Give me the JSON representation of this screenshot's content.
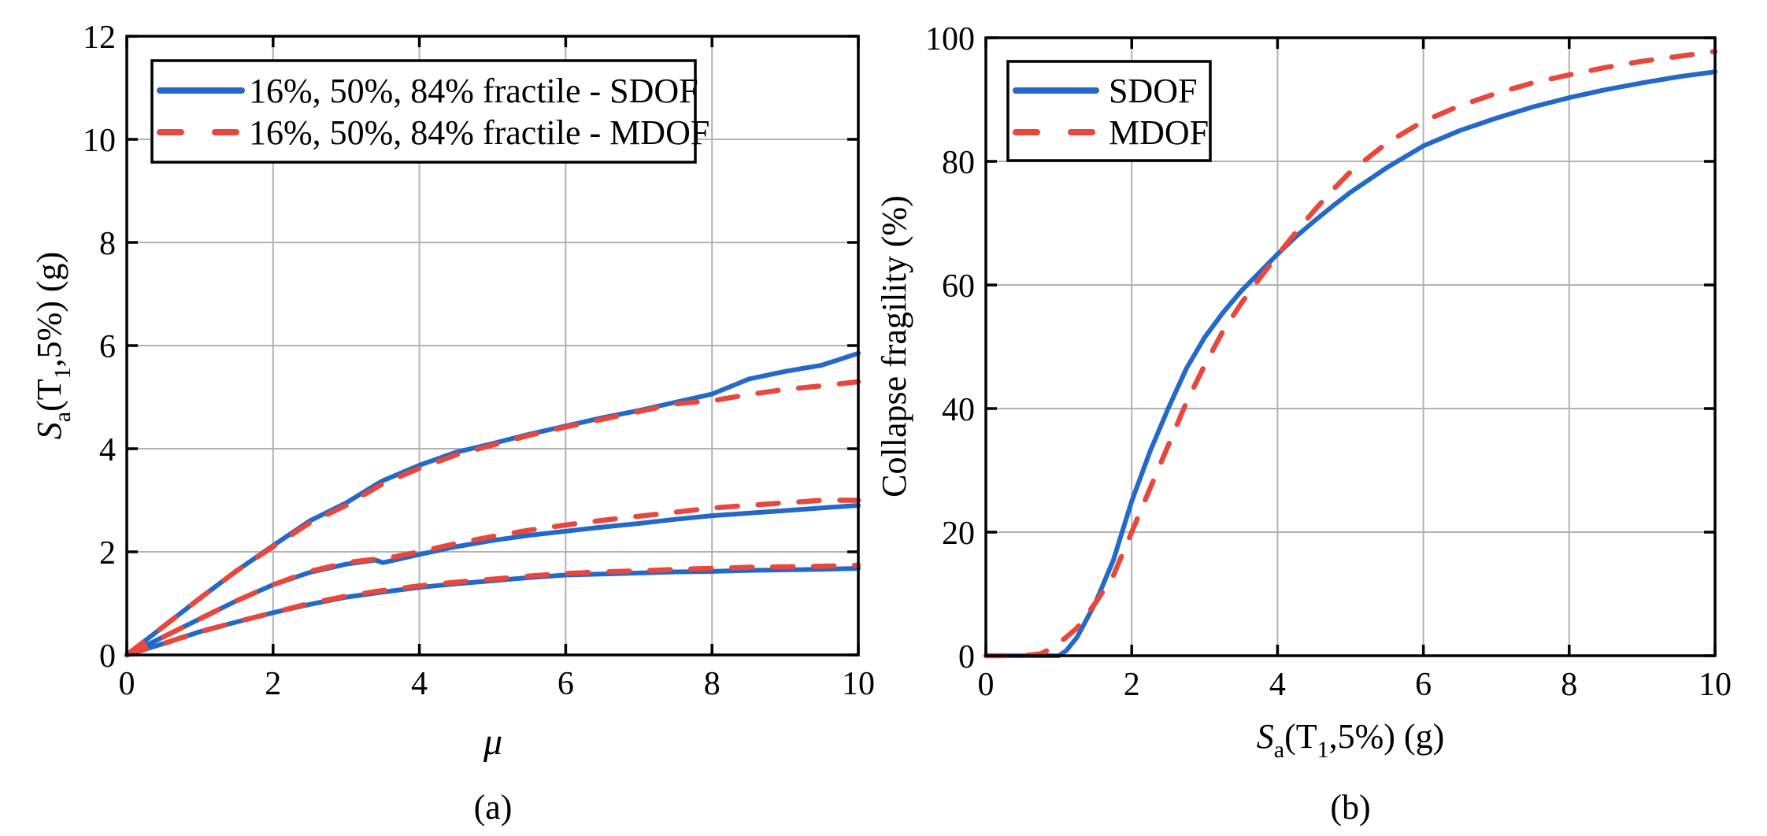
{
  "figure": {
    "background": "#ffffff",
    "captions": [
      "(a)",
      "(b)"
    ]
  },
  "colors": {
    "sdof_blue": "#2569c8",
    "mdof_red": "#e8473e",
    "grid_gray": "#b2b2b2",
    "axis_black": "#000000",
    "text_black": "#000000",
    "legend_bg": "#ffffff"
  },
  "chart_data": [
    {
      "type": "line",
      "panel": "a",
      "title": "",
      "xlabel_rich": [
        {
          "t": "μ",
          "italic": true
        }
      ],
      "ylabel_rich": [
        {
          "t": "S",
          "italic": true
        },
        {
          "t": "a",
          "sub": true
        },
        {
          "t": "(T"
        },
        {
          "t": "1",
          "sub": true
        },
        {
          "t": ",5%) (g)"
        }
      ],
      "xlim": [
        0,
        10
      ],
      "ylim": [
        0,
        12
      ],
      "xticks": [
        0,
        2,
        4,
        6,
        8,
        10
      ],
      "yticks": [
        0,
        2,
        4,
        6,
        8,
        10,
        12
      ],
      "grid": true,
      "legend": {
        "position": "top-left",
        "entries": [
          {
            "label": "16%, 50%, 84% fractile - SDOF",
            "color": "sdof_blue",
            "dash": false
          },
          {
            "label": "16%, 50%, 84% fractile - MDOF",
            "color": "mdof_red",
            "dash": true
          }
        ]
      },
      "x": [
        0,
        0.5,
        1,
        1.5,
        2,
        2.5,
        3,
        3.4,
        3.5,
        4,
        4.5,
        5,
        5.5,
        6,
        6.5,
        7,
        7.5,
        8,
        8.5,
        9,
        9.5,
        10
      ],
      "series": [
        {
          "name": "84% fractile - SDOF",
          "color": "sdof_blue",
          "dash": false,
          "values": [
            0,
            0.55,
            1.1,
            1.63,
            2.12,
            2.6,
            2.95,
            3.3,
            3.38,
            3.68,
            3.93,
            4.1,
            4.28,
            4.44,
            4.6,
            4.74,
            4.9,
            5.06,
            5.35,
            5.5,
            5.62,
            5.85
          ]
        },
        {
          "name": "50% fractile - SDOF",
          "color": "sdof_blue",
          "dash": false,
          "values": [
            0,
            0.35,
            0.7,
            1.05,
            1.36,
            1.6,
            1.76,
            1.84,
            1.79,
            1.95,
            2.1,
            2.22,
            2.32,
            2.4,
            2.48,
            2.55,
            2.63,
            2.7,
            2.75,
            2.8,
            2.85,
            2.9
          ]
        },
        {
          "name": "16% fractile - SDOF",
          "color": "sdof_blue",
          "dash": false,
          "values": [
            0,
            0.22,
            0.45,
            0.64,
            0.82,
            0.98,
            1.12,
            1.2,
            1.22,
            1.31,
            1.38,
            1.44,
            1.5,
            1.55,
            1.57,
            1.59,
            1.61,
            1.62,
            1.64,
            1.65,
            1.66,
            1.68
          ]
        },
        {
          "name": "84% fractile - MDOF",
          "color": "mdof_red",
          "dash": true,
          "values": [
            0,
            0.55,
            1.1,
            1.63,
            2.1,
            2.56,
            2.9,
            3.24,
            3.32,
            3.62,
            3.88,
            4.07,
            4.26,
            4.42,
            4.57,
            4.72,
            4.87,
            4.93,
            5.05,
            5.15,
            5.22,
            5.3
          ]
        },
        {
          "name": "50% fractile - MDOF",
          "color": "mdof_red",
          "dash": true,
          "values": [
            0,
            0.35,
            0.7,
            1.05,
            1.36,
            1.62,
            1.79,
            1.86,
            1.86,
            2.0,
            2.16,
            2.3,
            2.42,
            2.52,
            2.61,
            2.69,
            2.77,
            2.85,
            2.9,
            2.95,
            3.0,
            3.0
          ]
        },
        {
          "name": "16% fractile - MDOF",
          "color": "mdof_red",
          "dash": true,
          "values": [
            0,
            0.22,
            0.45,
            0.64,
            0.82,
            1.0,
            1.14,
            1.23,
            1.25,
            1.34,
            1.41,
            1.47,
            1.53,
            1.58,
            1.61,
            1.63,
            1.66,
            1.68,
            1.7,
            1.71,
            1.72,
            1.74
          ]
        }
      ]
    },
    {
      "type": "line",
      "panel": "b",
      "title": "",
      "xlabel_rich": [
        {
          "t": "S",
          "italic": true
        },
        {
          "t": "a",
          "sub": true
        },
        {
          "t": "(T"
        },
        {
          "t": "1",
          "sub": true
        },
        {
          "t": ",5%) (g)"
        }
      ],
      "ylabel_rich": [
        {
          "t": "Collapse fragility (%)"
        }
      ],
      "xlim": [
        0,
        10
      ],
      "ylim": [
        0,
        100
      ],
      "xticks": [
        0,
        2,
        4,
        6,
        8,
        10
      ],
      "yticks": [
        0,
        20,
        40,
        60,
        80,
        100
      ],
      "grid": true,
      "legend": {
        "position": "top-left",
        "entries": [
          {
            "label": "SDOF",
            "color": "sdof_blue",
            "dash": false
          },
          {
            "label": "MDOF",
            "color": "mdof_red",
            "dash": true
          }
        ]
      },
      "x": [
        0,
        0.25,
        0.5,
        0.75,
        0.9,
        1,
        1.1,
        1.25,
        1.5,
        1.75,
        2,
        2.25,
        2.5,
        2.75,
        3,
        3.25,
        3.5,
        3.75,
        4,
        4.25,
        4.5,
        4.75,
        5,
        5.5,
        6,
        6.5,
        7,
        7.5,
        8,
        8.5,
        9,
        9.5,
        10
      ],
      "series": [
        {
          "name": "SDOF",
          "color": "sdof_blue",
          "dash": false,
          "values": [
            0,
            0,
            0,
            0,
            0,
            0,
            0.8,
            3,
            8.5,
            15.5,
            25,
            33,
            40,
            46.5,
            51.5,
            55.5,
            59,
            62,
            65,
            67.8,
            70.3,
            72.7,
            75,
            79,
            82.5,
            85,
            87,
            88.8,
            90.3,
            91.6,
            92.7,
            93.7,
            94.5
          ]
        },
        {
          "name": "MDOF",
          "color": "mdof_red",
          "dash": true,
          "values": [
            0,
            0,
            0,
            0.3,
            1.2,
            2,
            3,
            4.5,
            8.5,
            13,
            20,
            27,
            34,
            41,
            47,
            52.5,
            57,
            61,
            64.8,
            68.5,
            72,
            75.3,
            78.3,
            83,
            86.5,
            89,
            91,
            92.7,
            94,
            95.2,
            96.2,
            97,
            97.8
          ]
        }
      ]
    }
  ]
}
